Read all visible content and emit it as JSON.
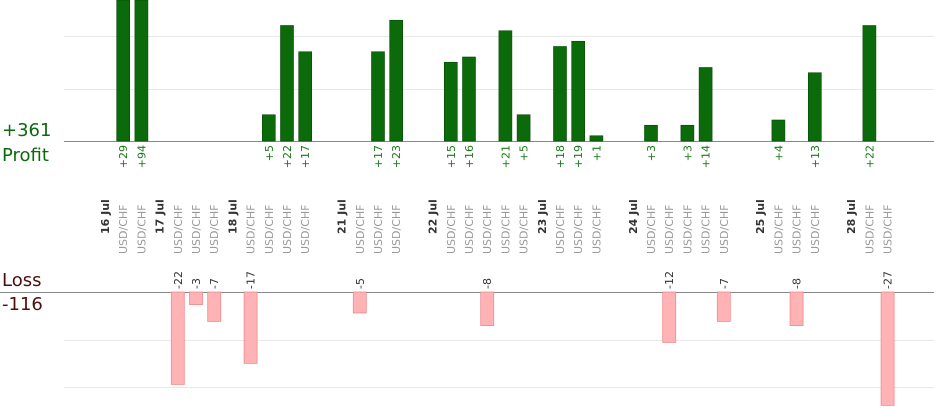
{
  "summary": {
    "profit_total": "+361",
    "profit_label": "Profit",
    "loss_label": "Loss",
    "loss_total": "-116"
  },
  "chart_data": {
    "type": "bar",
    "profit_color": "#0b6b0b",
    "loss_color": "#ffb3b5",
    "profit_label_color": "#1a7a1a",
    "loss_label_color": "#333333",
    "grid": true,
    "dates": [
      {
        "label": "16 Jul",
        "slot": 0
      },
      {
        "label": "17 Jul",
        "slot": 3
      },
      {
        "label": "18 Jul",
        "slot": 7
      },
      {
        "label": "21 Jul",
        "slot": 13
      },
      {
        "label": "22 Jul",
        "slot": 18
      },
      {
        "label": "23 Jul",
        "slot": 24
      },
      {
        "label": "24 Jul",
        "slot": 29
      },
      {
        "label": "25 Jul",
        "slot": 36
      },
      {
        "label": "28 Jul",
        "slot": 41
      }
    ],
    "trades": [
      {
        "slot": 1,
        "pair": "USD/CHF",
        "value": 29
      },
      {
        "slot": 2,
        "pair": "USD/CHF",
        "value": 94
      },
      {
        "slot": 4,
        "pair": "USD/CHF",
        "value": -22
      },
      {
        "slot": 5,
        "pair": "USD/CHF",
        "value": -3
      },
      {
        "slot": 6,
        "pair": "USD/CHF",
        "value": -7
      },
      {
        "slot": 8,
        "pair": "USD/CHF",
        "value": -17
      },
      {
        "slot": 9,
        "pair": "USD/CHF",
        "value": 5
      },
      {
        "slot": 10,
        "pair": "USD/CHF",
        "value": 22
      },
      {
        "slot": 11,
        "pair": "USD/CHF",
        "value": 17
      },
      {
        "slot": 14,
        "pair": "USD/CHF",
        "value": -5
      },
      {
        "slot": 15,
        "pair": "USD/CHF",
        "value": 17
      },
      {
        "slot": 16,
        "pair": "USD/CHF",
        "value": 23
      },
      {
        "slot": 19,
        "pair": "USD/CHF",
        "value": 15
      },
      {
        "slot": 20,
        "pair": "USD/CHF",
        "value": 16
      },
      {
        "slot": 21,
        "pair": "USD/CHF",
        "value": -8
      },
      {
        "slot": 22,
        "pair": "USD/CHF",
        "value": 21
      },
      {
        "slot": 23,
        "pair": "USD/CHF",
        "value": 5
      },
      {
        "slot": 25,
        "pair": "USD/CHF",
        "value": 18
      },
      {
        "slot": 26,
        "pair": "USD/CHF",
        "value": 19
      },
      {
        "slot": 27,
        "pair": "USD/CHF",
        "value": 1
      },
      {
        "slot": 30,
        "pair": "USD/CHF",
        "value": 3
      },
      {
        "slot": 31,
        "pair": "USD/CHF",
        "value": -12
      },
      {
        "slot": 32,
        "pair": "USD/CHF",
        "value": 3
      },
      {
        "slot": 33,
        "pair": "USD/CHF",
        "value": 14
      },
      {
        "slot": 34,
        "pair": "USD/CHF",
        "value": -7
      },
      {
        "slot": 37,
        "pair": "USD/CHF",
        "value": 4
      },
      {
        "slot": 38,
        "pair": "USD/CHF",
        "value": -8
      },
      {
        "slot": 39,
        "pair": "USD/CHF",
        "value": 13
      },
      {
        "slot": 42,
        "pair": "USD/CHF",
        "value": 22
      },
      {
        "slot": 43,
        "pair": "USD/CHF",
        "value": -27
      }
    ]
  }
}
